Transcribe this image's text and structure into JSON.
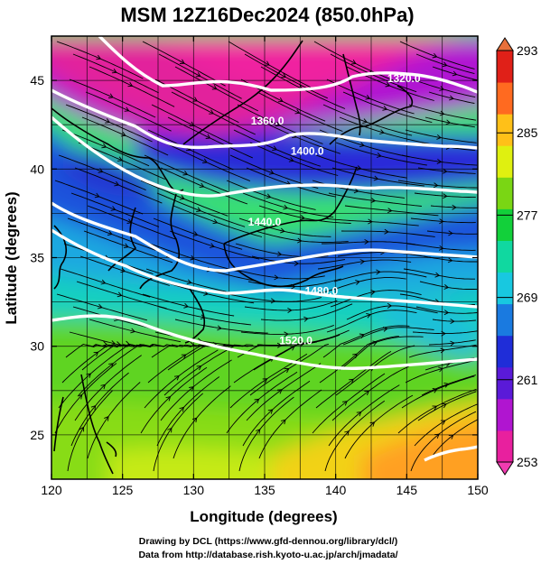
{
  "title": "MSM 12Z16Dec2024 (850.0hPa)",
  "x_axis": {
    "label": "Longitude (degrees)",
    "range": [
      120,
      150
    ],
    "ticks": [
      120,
      125,
      130,
      135,
      140,
      145,
      150
    ]
  },
  "y_axis": {
    "label": "Latitude  (degrees)",
    "range": [
      22.5,
      47.5
    ],
    "ticks": [
      25,
      30,
      35,
      40,
      45
    ]
  },
  "colorbar": {
    "range": [
      253,
      293
    ],
    "ticks": [
      253,
      261,
      269,
      277,
      285,
      293
    ],
    "colors": [
      "#e8209e",
      "#b015d0",
      "#5a1ad8",
      "#1f2dd8",
      "#1a7ae0",
      "#18c8e0",
      "#10d8a0",
      "#12d03a",
      "#7ad614",
      "#dff010",
      "#ffc018",
      "#ff6a20",
      "#e02018"
    ]
  },
  "contour_labels": [
    {
      "text": "1320.0",
      "lon": 144.8,
      "lat": 44.9
    },
    {
      "text": "1360.0",
      "lon": 135.2,
      "lat": 42.5
    },
    {
      "text": "1400.0",
      "lon": 138.0,
      "lat": 40.8
    },
    {
      "text": "1440.0",
      "lon": 135.0,
      "lat": 36.8
    },
    {
      "text": "1480.0",
      "lon": 139.0,
      "lat": 32.9
    },
    {
      "text": "1520.0",
      "lon": 137.2,
      "lat": 30.1
    }
  ],
  "credits": [
    "Drawing by DCL (https://www.gfd-dennou.org/library/dcl/)",
    "Data from http://database.rish.kyoto-u.ac.jp/arch/jmadata/"
  ]
}
